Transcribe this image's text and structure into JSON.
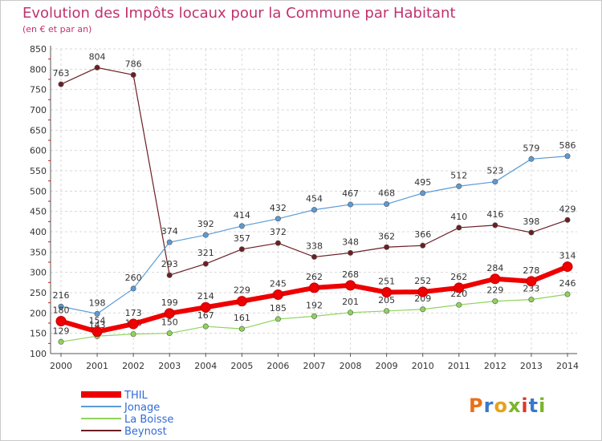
{
  "header": {
    "title": "Evolution des Impôts locaux pour la Commune par Habitant",
    "subtitle": "(en € et par an)"
  },
  "logo": {
    "text": "Proxiti",
    "colors": [
      "#e8701a",
      "#3a78c9",
      "#e8a01a",
      "#7ab52a",
      "#d93a2a",
      "#3a78c9",
      "#7ab52a"
    ]
  },
  "chart_data": {
    "type": "line",
    "title": "Evolution des Impôts locaux pour la Commune par Habitant",
    "subtitle": "(en € et par an)",
    "xlabel": "",
    "ylabel": "",
    "x": [
      "2000",
      "2001",
      "2002",
      "2003",
      "2004",
      "2005",
      "2006",
      "2007",
      "2008",
      "2009",
      "2010",
      "2011",
      "2012",
      "2013",
      "2014"
    ],
    "ylim": [
      100,
      850
    ],
    "yticks": [
      100,
      150,
      200,
      250,
      300,
      350,
      400,
      450,
      500,
      550,
      600,
      650,
      700,
      750,
      800,
      850
    ],
    "grid": true,
    "legend_position": "bottom-left",
    "series": [
      {
        "name": "Beynost",
        "color": "#6b1f24",
        "width": 1.2,
        "values": [
          763,
          804,
          786,
          293,
          321,
          357,
          372,
          338,
          348,
          362,
          366,
          410,
          416,
          398,
          429
        ]
      },
      {
        "name": "La Boisse",
        "color": "#8fd35a",
        "width": 1.2,
        "values": [
          129,
          143,
          148,
          150,
          167,
          161,
          185,
          192,
          201,
          205,
          209,
          220,
          229,
          233,
          246
        ]
      },
      {
        "name": "Jonage",
        "color": "#5b9bd5",
        "width": 1.2,
        "values": [
          216,
          198,
          260,
          374,
          392,
          414,
          432,
          454,
          467,
          468,
          495,
          512,
          523,
          579,
          586
        ]
      },
      {
        "name": "THIL",
        "color": "#ee0000",
        "width": 6,
        "values": [
          180,
          154,
          173,
          199,
          214,
          229,
          245,
          262,
          268,
          251,
          252,
          262,
          284,
          278,
          314
        ]
      }
    ],
    "legend_order": [
      "THIL",
      "Jonage",
      "La Boisse",
      "Beynost"
    ]
  }
}
